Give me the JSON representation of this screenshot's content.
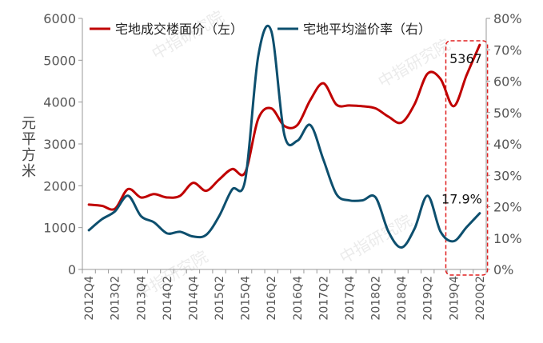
{
  "chart_data": {
    "type": "line",
    "watermark": "中指研究院",
    "ylabel_left": "元平方米",
    "ylim_left": [
      0,
      6000
    ],
    "yticks_left": [
      "0",
      "1000",
      "2000",
      "3000",
      "4000",
      "5000",
      "6000"
    ],
    "ylim_right": [
      0,
      80
    ],
    "yticks_right": [
      "0%",
      "10%",
      "20%",
      "30%",
      "40%",
      "50%",
      "60%",
      "70%",
      "80%"
    ],
    "x_tick_labels": [
      "2012Q4",
      "2013Q2",
      "2013Q4",
      "2014Q2",
      "2014Q4",
      "2015Q2",
      "2015Q4",
      "2016Q2",
      "2016Q4",
      "2017Q2",
      "2017Q4",
      "2018Q2",
      "2018Q4",
      "2019Q2",
      "2019Q4",
      "2020Q2"
    ],
    "categories": [
      "2012Q4",
      "2013Q1",
      "2013Q2",
      "2013Q3",
      "2013Q4",
      "2014Q1",
      "2014Q2",
      "2014Q3",
      "2014Q4",
      "2015Q1",
      "2015Q2",
      "2015Q3",
      "2015Q4",
      "2016Q1",
      "2016Q2",
      "2016Q3",
      "2016Q4",
      "2017Q1",
      "2017Q2",
      "2017Q3",
      "2017Q4",
      "2018Q1",
      "2018Q2",
      "2018Q3",
      "2018Q4",
      "2019Q1",
      "2019Q2",
      "2019Q3",
      "2019Q4",
      "2020Q1",
      "2020Q2"
    ],
    "series": [
      {
        "name": "宅地成交楼面价（左）",
        "axis": "left",
        "color": "#c00000",
        "values": [
          1550,
          1520,
          1450,
          1920,
          1720,
          1800,
          1720,
          1760,
          2070,
          1880,
          2150,
          2400,
          2320,
          3600,
          3850,
          3430,
          3450,
          4050,
          4450,
          3940,
          3920,
          3900,
          3850,
          3650,
          3510,
          3950,
          4680,
          4550,
          3900,
          4650,
          5367
        ]
      },
      {
        "name": "宅地平均溢价率（右）",
        "axis": "right",
        "color": "#0d4f6e",
        "values": [
          12.5,
          16,
          18.5,
          23.5,
          17,
          15,
          11.5,
          12,
          10.5,
          11,
          17,
          25.5,
          28.5,
          68,
          76,
          43,
          41,
          46,
          35,
          24,
          22,
          22,
          23,
          12,
          7,
          13,
          23.5,
          12,
          9,
          13.5,
          17.9
        ]
      }
    ],
    "annotations": [
      {
        "text": "5367",
        "series": 0,
        "index": 30
      },
      {
        "text": "17.9%",
        "series": 1,
        "index": 30
      }
    ],
    "highlight_categories": [
      "2019Q4",
      "2020Q2"
    ],
    "legend_position": "top",
    "grid": false
  }
}
